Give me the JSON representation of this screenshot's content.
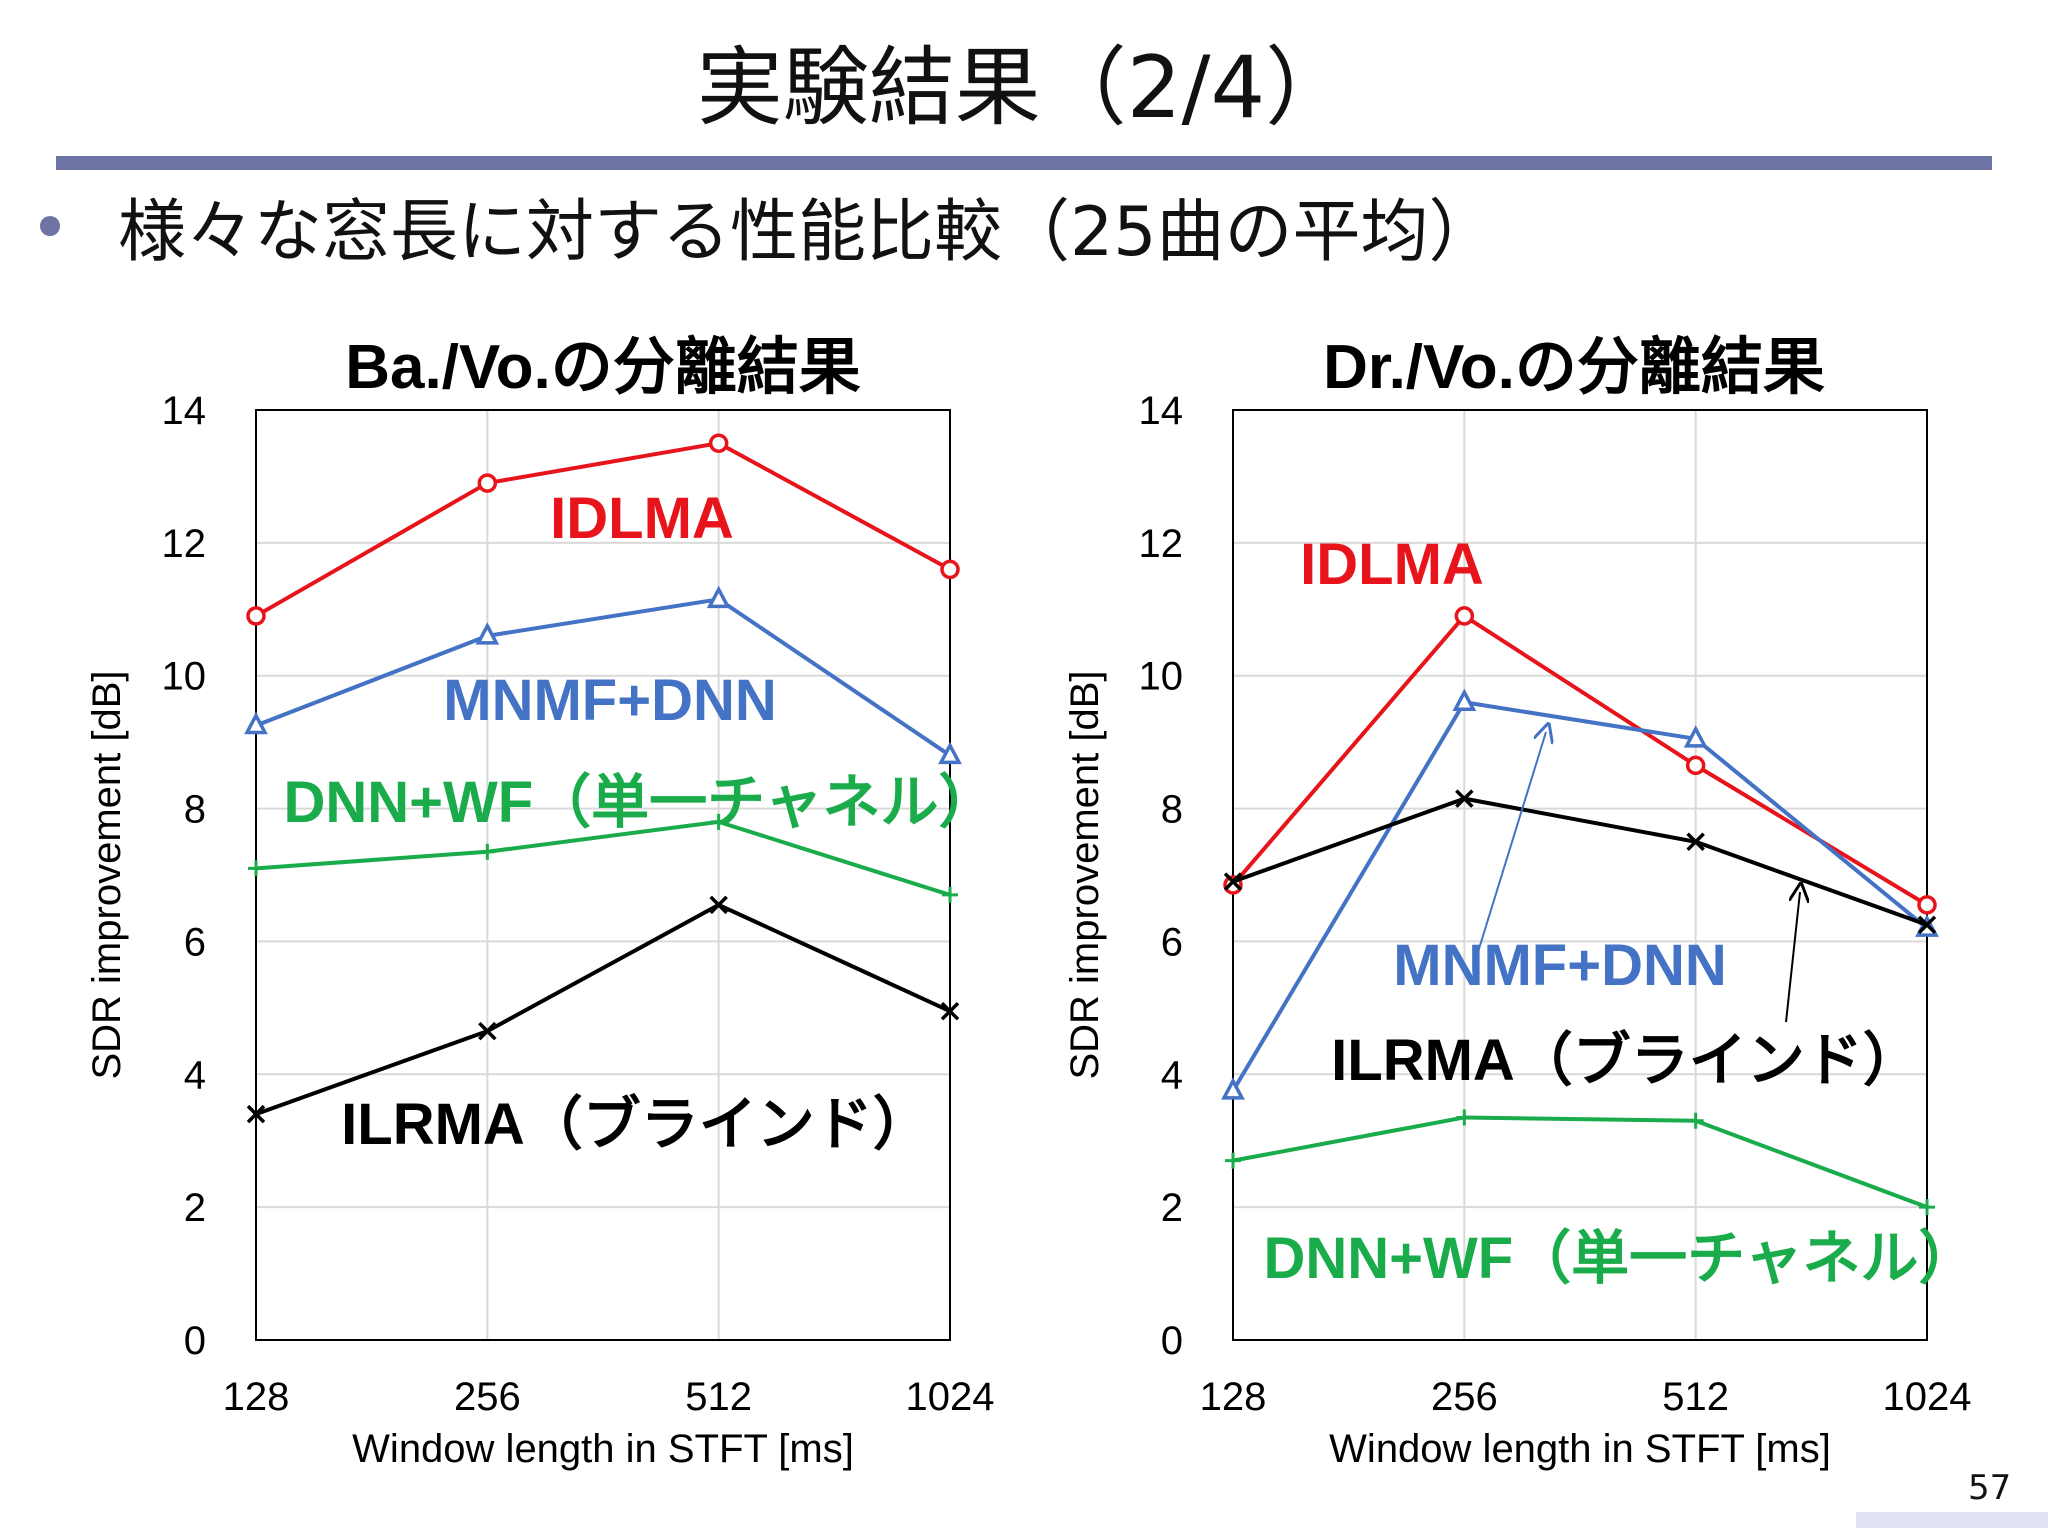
{
  "slide": {
    "title": "実験結果（2/4）",
    "bullet": "様々な窓長に対する性能比較（25曲の平均）",
    "page_number": "57"
  },
  "colors": {
    "IDLMA": "#e8141b",
    "MNMF+DNN": "#4472c4",
    "DNN+WF": "#1aab4b",
    "ILRMA": "#000000",
    "rule": "#6d73a3"
  },
  "chart_data": [
    {
      "type": "line",
      "title": "Ba./Vo.の分離結果",
      "xlabel": "Window length in STFT [ms]",
      "ylabel": "SDR improvement [dB]",
      "categories": [
        "128",
        "256",
        "512",
        "1024"
      ],
      "ylim": [
        0,
        14
      ],
      "yticks": [
        "0",
        "2",
        "4",
        "6",
        "8",
        "10",
        "12",
        "14"
      ],
      "grid": true,
      "series": [
        {
          "name": "IDLMA",
          "marker": "circle",
          "values": [
            10.9,
            12.9,
            13.5,
            11.6
          ],
          "label": "IDLMA"
        },
        {
          "name": "MNMF+DNN",
          "marker": "triangle",
          "values": [
            9.25,
            10.6,
            11.15,
            8.8
          ],
          "label": "MNMF+DNN"
        },
        {
          "name": "DNN+WF",
          "marker": "plus",
          "values": [
            7.1,
            7.35,
            7.8,
            6.7
          ],
          "label": "DNN+WF（単一チャネル）"
        },
        {
          "name": "ILRMA",
          "marker": "x",
          "values": [
            3.4,
            4.65,
            6.55,
            4.95
          ],
          "label": "ILRMA（ブラインド）"
        }
      ]
    },
    {
      "type": "line",
      "title": "Dr./Vo.の分離結果",
      "xlabel": "Window length in STFT [ms]",
      "ylabel": "SDR improvement [dB]",
      "categories": [
        "128",
        "256",
        "512",
        "1024"
      ],
      "ylim": [
        0,
        14
      ],
      "yticks": [
        "0",
        "2",
        "4",
        "6",
        "8",
        "10",
        "12",
        "14"
      ],
      "grid": true,
      "series": [
        {
          "name": "IDLMA",
          "marker": "circle",
          "values": [
            6.85,
            10.9,
            8.65,
            6.55
          ],
          "label": "IDLMA"
        },
        {
          "name": "MNMF+DNN",
          "marker": "triangle",
          "values": [
            3.75,
            9.6,
            9.05,
            6.2
          ],
          "label": "MNMF+DNN"
        },
        {
          "name": "ILRMA",
          "marker": "x",
          "values": [
            6.9,
            8.15,
            7.5,
            6.25
          ],
          "label": "ILRMA（ブラインド）"
        },
        {
          "name": "DNN+WF",
          "marker": "plus",
          "values": [
            2.7,
            3.35,
            3.3,
            2.0
          ],
          "label": "DNN+WF（単一チャネル）"
        }
      ]
    }
  ]
}
